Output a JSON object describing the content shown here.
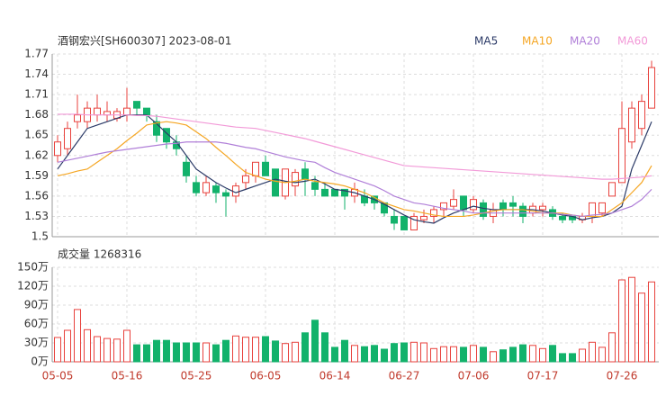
{
  "chart_data": [
    {
      "type": "candlestick",
      "title": "酒钢宏兴[SH600307] 2023-08-01",
      "up_color": "#e8413c",
      "down_color": "#12b26b",
      "legend": "top-right",
      "grid": true,
      "ylim": [
        1.5,
        1.77
      ],
      "yticks": [
        1.5,
        1.53,
        1.56,
        1.59,
        1.62,
        1.65,
        1.68,
        1.71,
        1.74,
        1.77
      ],
      "open": [
        1.62,
        1.63,
        1.67,
        1.67,
        1.68,
        1.68,
        1.675,
        1.68,
        1.7,
        1.69,
        1.67,
        1.66,
        1.64,
        1.61,
        1.58,
        1.565,
        1.575,
        1.565,
        1.56,
        1.58,
        1.59,
        1.61,
        1.6,
        1.56,
        1.575,
        1.6,
        1.58,
        1.57,
        1.57,
        1.57,
        1.56,
        1.56,
        1.56,
        1.55,
        1.53,
        1.53,
        1.51,
        1.525,
        1.53,
        1.54,
        1.545,
        1.56,
        1.54,
        1.55,
        1.53,
        1.55,
        1.55,
        1.545,
        1.535,
        1.54,
        1.54,
        1.53,
        1.53,
        1.525,
        1.53,
        1.535,
        1.56,
        1.58,
        1.64,
        1.66,
        1.69
      ],
      "high": [
        1.65,
        1.67,
        1.71,
        1.7,
        1.71,
        1.7,
        1.69,
        1.72,
        1.7,
        1.69,
        1.68,
        1.66,
        1.65,
        1.62,
        1.59,
        1.59,
        1.58,
        1.57,
        1.58,
        1.6,
        1.61,
        1.62,
        1.6,
        1.6,
        1.6,
        1.61,
        1.59,
        1.58,
        1.57,
        1.57,
        1.58,
        1.57,
        1.56,
        1.55,
        1.54,
        1.53,
        1.535,
        1.54,
        1.545,
        1.55,
        1.57,
        1.56,
        1.56,
        1.555,
        1.55,
        1.555,
        1.56,
        1.55,
        1.55,
        1.55,
        1.545,
        1.535,
        1.53,
        1.535,
        1.55,
        1.55,
        1.58,
        1.7,
        1.7,
        1.71,
        1.76
      ],
      "low": [
        1.61,
        1.62,
        1.66,
        1.66,
        1.67,
        1.67,
        1.67,
        1.67,
        1.68,
        1.67,
        1.64,
        1.63,
        1.62,
        1.58,
        1.56,
        1.56,
        1.55,
        1.53,
        1.55,
        1.57,
        1.58,
        1.59,
        1.56,
        1.555,
        1.56,
        1.56,
        1.56,
        1.56,
        1.56,
        1.54,
        1.55,
        1.545,
        1.54,
        1.53,
        1.51,
        1.51,
        1.51,
        1.52,
        1.52,
        1.53,
        1.54,
        1.53,
        1.535,
        1.525,
        1.52,
        1.53,
        1.53,
        1.52,
        1.53,
        1.53,
        1.525,
        1.52,
        1.52,
        1.52,
        1.52,
        1.53,
        1.56,
        1.58,
        1.63,
        1.65,
        1.69
      ],
      "close": [
        1.64,
        1.66,
        1.68,
        1.69,
        1.69,
        1.685,
        1.685,
        1.69,
        1.69,
        1.68,
        1.65,
        1.64,
        1.63,
        1.59,
        1.565,
        1.58,
        1.565,
        1.56,
        1.575,
        1.59,
        1.61,
        1.59,
        1.56,
        1.6,
        1.595,
        1.585,
        1.57,
        1.56,
        1.56,
        1.56,
        1.57,
        1.55,
        1.55,
        1.535,
        1.52,
        1.51,
        1.53,
        1.53,
        1.54,
        1.55,
        1.555,
        1.54,
        1.555,
        1.53,
        1.54,
        1.54,
        1.545,
        1.53,
        1.545,
        1.545,
        1.53,
        1.525,
        1.525,
        1.53,
        1.55,
        1.55,
        1.58,
        1.66,
        1.69,
        1.7,
        1.75
      ],
      "series": [
        {
          "name": "MA5",
          "color": "#2b3a67",
          "values": [
            1.6,
            1.62,
            1.64,
            1.66,
            1.665,
            1.67,
            1.675,
            1.68,
            1.68,
            1.68,
            1.667,
            1.653,
            1.64,
            1.62,
            1.6,
            1.59,
            1.58,
            1.572,
            1.565,
            1.57,
            1.575,
            1.58,
            1.585,
            1.582,
            1.58,
            1.582,
            1.585,
            1.578,
            1.57,
            1.568,
            1.565,
            1.56,
            1.555,
            1.548,
            1.54,
            1.532,
            1.525,
            1.522,
            1.52,
            1.528,
            1.535,
            1.54,
            1.545,
            1.542,
            1.54,
            1.54,
            1.54,
            1.54,
            1.54,
            1.538,
            1.535,
            1.532,
            1.53,
            1.525,
            1.528,
            1.53,
            1.535,
            1.545,
            1.6,
            1.635,
            1.67
          ]
        },
        {
          "name": "MA10",
          "color": "#f5a623",
          "values": [
            1.59,
            1.593,
            1.597,
            1.6,
            1.61,
            1.62,
            1.63,
            1.642,
            1.653,
            1.665,
            1.668,
            1.67,
            1.668,
            1.665,
            1.655,
            1.645,
            1.632,
            1.62,
            1.607,
            1.595,
            1.59,
            1.585,
            1.582,
            1.58,
            1.582,
            1.585,
            1.582,
            1.58,
            1.578,
            1.575,
            1.57,
            1.565,
            1.558,
            1.55,
            1.545,
            1.54,
            1.538,
            1.535,
            1.532,
            1.53,
            1.53,
            1.53,
            1.532,
            1.535,
            1.538,
            1.54,
            1.54,
            1.54,
            1.538,
            1.535,
            1.535,
            1.535,
            1.532,
            1.53,
            1.53,
            1.53,
            1.54,
            1.55,
            1.565,
            1.58,
            1.605
          ]
        },
        {
          "name": "MA20",
          "color": "#b07fd8",
          "values": [
            1.61,
            1.613,
            1.616,
            1.619,
            1.622,
            1.625,
            1.627,
            1.629,
            1.631,
            1.633,
            1.635,
            1.637,
            1.638,
            1.64,
            1.64,
            1.64,
            1.64,
            1.638,
            1.635,
            1.632,
            1.63,
            1.626,
            1.622,
            1.618,
            1.615,
            1.612,
            1.61,
            1.602,
            1.595,
            1.59,
            1.585,
            1.58,
            1.575,
            1.568,
            1.56,
            1.555,
            1.55,
            1.548,
            1.545,
            1.542,
            1.54,
            1.538,
            1.535,
            1.535,
            1.535,
            1.535,
            1.535,
            1.535,
            1.535,
            1.535,
            1.535,
            1.533,
            1.532,
            1.53,
            1.532,
            1.533,
            1.535,
            1.54,
            1.545,
            1.555,
            1.57
          ]
        },
        {
          "name": "MA60",
          "color": "#f29ad8",
          "values": [
            1.681,
            1.681,
            1.681,
            1.68,
            1.68,
            1.68,
            1.68,
            1.68,
            1.679,
            1.679,
            1.678,
            1.676,
            1.674,
            1.672,
            1.67,
            1.668,
            1.666,
            1.664,
            1.662,
            1.661,
            1.66,
            1.657,
            1.654,
            1.651,
            1.648,
            1.645,
            1.641,
            1.637,
            1.633,
            1.629,
            1.625,
            1.621,
            1.617,
            1.613,
            1.609,
            1.605,
            1.604,
            1.603,
            1.602,
            1.601,
            1.6,
            1.599,
            1.598,
            1.597,
            1.596,
            1.595,
            1.594,
            1.593,
            1.592,
            1.591,
            1.59,
            1.589,
            1.588,
            1.587,
            1.586,
            1.585,
            1.585,
            1.586,
            1.587,
            1.588,
            1.59
          ]
        }
      ]
    },
    {
      "type": "bar",
      "title": "成交量 1268316",
      "grid": true,
      "categories": [
        "05-05",
        null,
        null,
        null,
        null,
        null,
        null,
        "05-16",
        null,
        null,
        null,
        null,
        null,
        null,
        "05-25",
        null,
        null,
        null,
        null,
        null,
        null,
        "06-05",
        null,
        null,
        null,
        null,
        null,
        null,
        "06-14",
        null,
        null,
        null,
        null,
        null,
        null,
        "06-27",
        null,
        null,
        null,
        null,
        null,
        null,
        "07-06",
        null,
        null,
        null,
        null,
        null,
        null,
        "07-17",
        null,
        null,
        null,
        null,
        null,
        null,
        null,
        "07-26",
        null,
        null,
        null
      ],
      "values": [
        38.6,
        50,
        83,
        51,
        40,
        37,
        36,
        50,
        27,
        27,
        34,
        34,
        30,
        30,
        30,
        30,
        27,
        34,
        41,
        39,
        39,
        40,
        33,
        29,
        31,
        46,
        66,
        46,
        23,
        34,
        26,
        24,
        26,
        20,
        29,
        30,
        31,
        30,
        21,
        24,
        24,
        23,
        26,
        23,
        16,
        19,
        23,
        27,
        26,
        21,
        26,
        13,
        13,
        20,
        31,
        23,
        46,
        130,
        134,
        109,
        126.8
      ],
      "ylim": [
        0,
        150
      ],
      "yticks": [
        {
          "value": 0,
          "label": "0万"
        },
        {
          "value": 30,
          "label": "30万"
        },
        {
          "value": 60,
          "label": "60万"
        },
        {
          "value": 90,
          "label": "90万"
        },
        {
          "value": 120,
          "label": "120万"
        },
        {
          "value": 150,
          "label": "150万"
        }
      ]
    }
  ]
}
